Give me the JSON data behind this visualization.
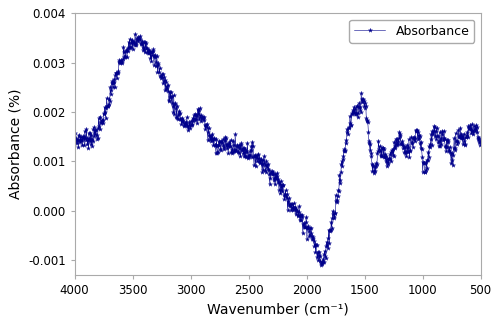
{
  "title": "",
  "xlabel": "Wavenumber (cm⁻¹)",
  "ylabel": "Absorbance (%)",
  "legend_label": "Absorbance",
  "line_color": "#00008B",
  "marker_color": "#00008B",
  "xlim": [
    4000,
    500
  ],
  "ylim": [
    -0.0013,
    0.004
  ],
  "yticks": [
    -0.001,
    0.0,
    0.001,
    0.002,
    0.003,
    0.004
  ],
  "xticks": [
    4000,
    3500,
    3000,
    2500,
    2000,
    1500,
    1000,
    500
  ],
  "background_color": "#ffffff",
  "figsize": [
    5.0,
    3.25
  ],
  "dpi": 100
}
